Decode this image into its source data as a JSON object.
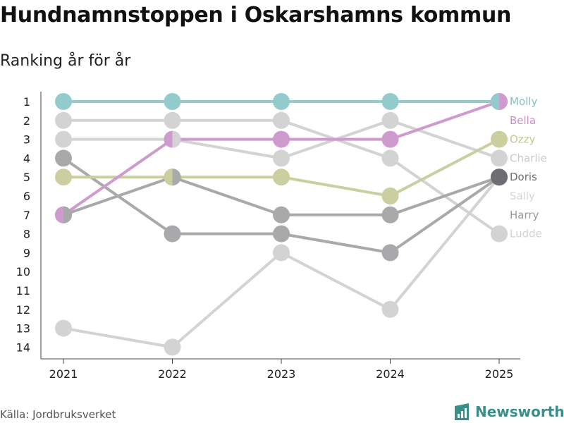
{
  "chart_data": {
    "type": "line",
    "title": "Hundnamnstoppen i Oskarshamns kommun",
    "subtitle": "Ranking år för år",
    "x": [
      "2021",
      "2022",
      "2023",
      "2024",
      "2025"
    ],
    "y_ticks": [
      "1",
      "2",
      "3",
      "4",
      "5",
      "6",
      "7",
      "8",
      "9",
      "10",
      "11",
      "12",
      "13",
      "14"
    ],
    "ylim": [
      1,
      14
    ],
    "y_inverted": true,
    "series": [
      {
        "name": "Sally",
        "values": [
          13,
          14,
          9,
          12,
          5
        ],
        "color": "#d3d3d3",
        "label_color": "#d6d6d6"
      },
      {
        "name": "Ludde",
        "values": [
          2,
          2,
          2,
          4,
          8
        ],
        "color": "#d3d3d3",
        "label_color": "#d2d2d2"
      },
      {
        "name": "Charlie",
        "values": [
          3,
          3,
          4,
          2,
          4
        ],
        "color": "#d3d3d3",
        "label_color": "#c8c8c8"
      },
      {
        "name": "Harry",
        "values": [
          4,
          8,
          8,
          9,
          5
        ],
        "color": "#a9a9ab",
        "label_color": "#9a9a9c"
      },
      {
        "name": "Doris",
        "values": [
          7,
          5,
          7,
          7,
          5
        ],
        "color": "#a9a9ab",
        "label_color": "#6e6e72"
      },
      {
        "name": "Ozzy",
        "values": [
          5,
          5,
          5,
          6,
          3
        ],
        "color": "#cbce9e",
        "label_color": "#c3c78f"
      },
      {
        "name": "Bella",
        "values": [
          7,
          3,
          3,
          3,
          1
        ],
        "color": "#cf9bcf",
        "label_color": "#c78ec7"
      },
      {
        "name": "Molly",
        "values": [
          1,
          1,
          1,
          1,
          1
        ],
        "color": "#93cbcd",
        "label_color": "#7fc2c4"
      }
    ],
    "label_order": [
      "Molly",
      "Bella",
      "Ozzy",
      "Charlie",
      "Doris",
      "Sally",
      "Harry",
      "Ludde"
    ],
    "doris_final_marker_color": "#6e6e72"
  },
  "footer": {
    "source": "Källa: Jordbruksverket",
    "brand": "Newsworthy",
    "brand_color": "#3a8f8b"
  }
}
